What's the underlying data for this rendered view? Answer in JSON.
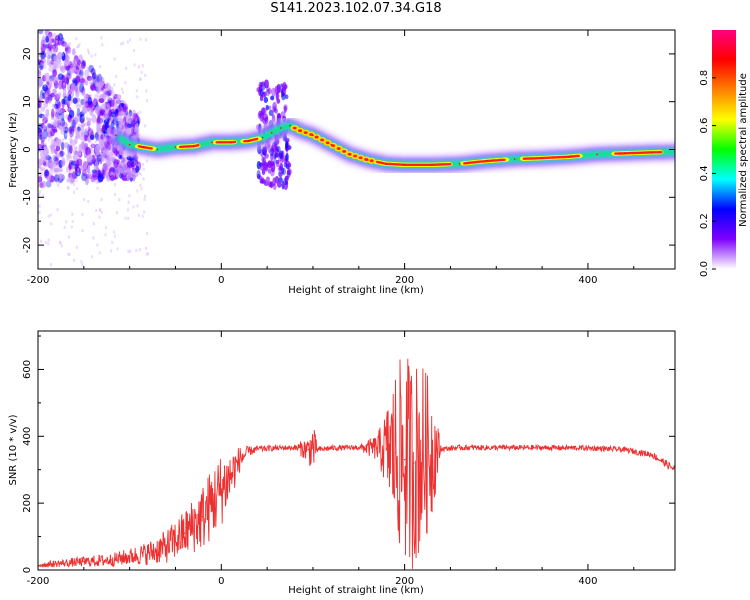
{
  "title": "S141.2023.102.07.34.G18",
  "chart_data": [
    {
      "type": "heatmap",
      "xlabel": "Height of straight line (km)",
      "ylabel": "Frequency (Hz)",
      "xlim": [
        -200,
        495
      ],
      "ylim": [
        -25,
        25
      ],
      "xticks": [
        -200,
        0,
        200,
        400
      ],
      "yticks": [
        -20,
        -10,
        0,
        10,
        20
      ],
      "colorbar": {
        "label": "Normalized spectral amplitude",
        "range": [
          0,
          1
        ],
        "ticks": [
          0.0,
          0.2,
          0.4,
          0.6,
          0.8
        ],
        "colors": [
          "#ffffff",
          "#7f00ff",
          "#0000ff",
          "#00ffff",
          "#00ff00",
          "#ffff00",
          "#ff8000",
          "#ff0000",
          "#ff0080"
        ]
      },
      "ridge": {
        "name": "dominant frequency",
        "x": [
          -195,
          -170,
          -150,
          -130,
          -115,
          -100,
          -85,
          -70,
          -50,
          -30,
          -10,
          10,
          30,
          45,
          55,
          65,
          75,
          85,
          100,
          120,
          140,
          160,
          180,
          200,
          230,
          260,
          290,
          320,
          350,
          380,
          410,
          440,
          470,
          495
        ],
        "y": [
          10,
          8,
          6,
          4,
          3,
          1,
          0.5,
          0,
          0.5,
          0.7,
          1.5,
          1.5,
          1.8,
          2.5,
          3.5,
          4.5,
          5,
          4,
          3,
          1,
          -1,
          -2.2,
          -3,
          -3.2,
          -3.2,
          -3,
          -2.4,
          -2,
          -1.8,
          -1.5,
          -1,
          -0.8,
          -0.6,
          -0.5
        ]
      }
    },
    {
      "type": "line",
      "xlabel": "Height of straight line (km)",
      "ylabel": "SNR (10 * v/v)",
      "xlim": [
        -200,
        495
      ],
      "ylim": [
        0,
        715
      ],
      "xticks": [
        -200,
        0,
        200,
        400
      ],
      "yticks": [
        0,
        200,
        400,
        600
      ],
      "color": "#ee3030",
      "envelope": {
        "x": [
          -200,
          -150,
          -120,
          -100,
          -80,
          -60,
          -40,
          -20,
          -10,
          0,
          10,
          20,
          30,
          40,
          60,
          80,
          95,
          100,
          105,
          120,
          150,
          170,
          180,
          190,
          200,
          210,
          220,
          230,
          240,
          260,
          300,
          350,
          400,
          440,
          470,
          495
        ],
        "mean": [
          15,
          25,
          30,
          40,
          50,
          70,
          110,
          160,
          200,
          240,
          280,
          330,
          355,
          362,
          365,
          366,
          360,
          365,
          360,
          365,
          366,
          365,
          362,
          350,
          330,
          320,
          340,
          355,
          362,
          366,
          366,
          366,
          365,
          360,
          345,
          300
        ],
        "amp": [
          8,
          15,
          20,
          25,
          35,
          50,
          70,
          100,
          110,
          110,
          80,
          40,
          15,
          10,
          8,
          8,
          40,
          80,
          10,
          8,
          8,
          40,
          120,
          260,
          320,
          320,
          280,
          200,
          8,
          8,
          8,
          8,
          8,
          8,
          10,
          12
        ]
      }
    }
  ]
}
